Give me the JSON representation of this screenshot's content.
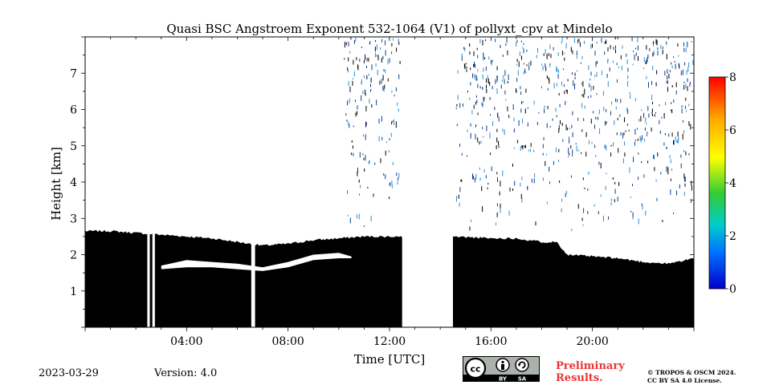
{
  "chart_data": {
    "type": "heatmap",
    "title": "Quasi BSC Angstroem Exponent 532-1064 (V1) of pollyxt_cpv at Mindelo",
    "xlabel": "Time [UTC]",
    "ylabel": "Height [km]",
    "xlim_hours": [
      0,
      24
    ],
    "ylim_km": [
      0,
      8
    ],
    "x_ticks": [
      {
        "value": 4,
        "label": "04:00"
      },
      {
        "value": 8,
        "label": "08:00"
      },
      {
        "value": 12,
        "label": "12:00"
      },
      {
        "value": 16,
        "label": "16:00"
      },
      {
        "value": 20,
        "label": "20:00"
      }
    ],
    "y_ticks": [
      {
        "value": 1,
        "label": "1"
      },
      {
        "value": 2,
        "label": "2"
      },
      {
        "value": 3,
        "label": "3"
      },
      {
        "value": 4,
        "label": "4"
      },
      {
        "value": 5,
        "label": "5"
      },
      {
        "value": 6,
        "label": "6"
      },
      {
        "value": 7,
        "label": "7"
      }
    ],
    "colorbar": {
      "range": [
        0,
        8
      ],
      "ticks": [
        {
          "value": 0,
          "label": "0"
        },
        {
          "value": 2,
          "label": "2"
        },
        {
          "value": 4,
          "label": "4"
        },
        {
          "value": 6,
          "label": "6"
        },
        {
          "value": 8,
          "label": "8"
        }
      ],
      "colors": [
        "#0000cc",
        "#0077ff",
        "#00cccc",
        "#33cc33",
        "#ffff00",
        "#ffaa00",
        "#ff0000"
      ]
    },
    "layer_top_km": [
      [
        0,
        2.65
      ],
      [
        1,
        2.65
      ],
      [
        2,
        2.6
      ],
      [
        3,
        2.55
      ],
      [
        4,
        2.5
      ],
      [
        5,
        2.45
      ],
      [
        6,
        2.35
      ],
      [
        7,
        2.25
      ],
      [
        8,
        2.3
      ],
      [
        9,
        2.4
      ],
      [
        10,
        2.45
      ],
      [
        11,
        2.5
      ],
      [
        12,
        2.5
      ],
      [
        12.5,
        2.5
      ]
    ],
    "layer_top_km_afternoon": [
      [
        14.5,
        2.5
      ],
      [
        16,
        2.45
      ],
      [
        17,
        2.45
      ],
      [
        18,
        2.35
      ],
      [
        18.6,
        2.35
      ],
      [
        19,
        2.0
      ],
      [
        20,
        1.95
      ],
      [
        21,
        1.9
      ],
      [
        22,
        1.8
      ],
      [
        23,
        1.75
      ],
      [
        24,
        1.9
      ]
    ],
    "no_data_gaps_hours": [
      [
        12.5,
        14.5
      ],
      [
        2.45,
        2.55
      ],
      [
        2.65,
        2.75
      ],
      [
        6.55,
        6.7
      ]
    ],
    "elevated_clear_band_km": [
      [
        3,
        1.6,
        1.7
      ],
      [
        4,
        1.65,
        1.85
      ],
      [
        5,
        1.65,
        1.8
      ],
      [
        6,
        1.6,
        1.75
      ],
      [
        7,
        1.55,
        1.65
      ],
      [
        8,
        1.65,
        1.8
      ],
      [
        9,
        1.85,
        2.0
      ],
      [
        10,
        1.9,
        2.05
      ],
      [
        10.5,
        1.9,
        1.95
      ]
    ],
    "scattered_noise_regions": [
      {
        "x_hours": [
          10.2,
          12.4
        ],
        "y_km": [
          2.5,
          8.0
        ],
        "value_range": [
          0.5,
          1.5
        ]
      },
      {
        "x_hours": [
          14.6,
          24.0
        ],
        "y_km": [
          2.6,
          8.0
        ],
        "value_range": [
          0.5,
          1.5
        ]
      }
    ]
  },
  "footer": {
    "date": "2023-03-29",
    "version": "Version: 4.0",
    "license_badge": {
      "cc": "cc",
      "by": "BY",
      "sa": "SA",
      "icons": [
        "cc-icon",
        "person-icon",
        "share-alike-icon"
      ]
    },
    "preliminary": [
      "Preliminary",
      "Results."
    ],
    "copyright": [
      "© TROPOS & OSCM 2024.",
      "CC BY SA 4.0 License."
    ]
  },
  "colors": {
    "data": "#000000",
    "grid_frame": "#000000",
    "preliminary": "#ee3333"
  }
}
